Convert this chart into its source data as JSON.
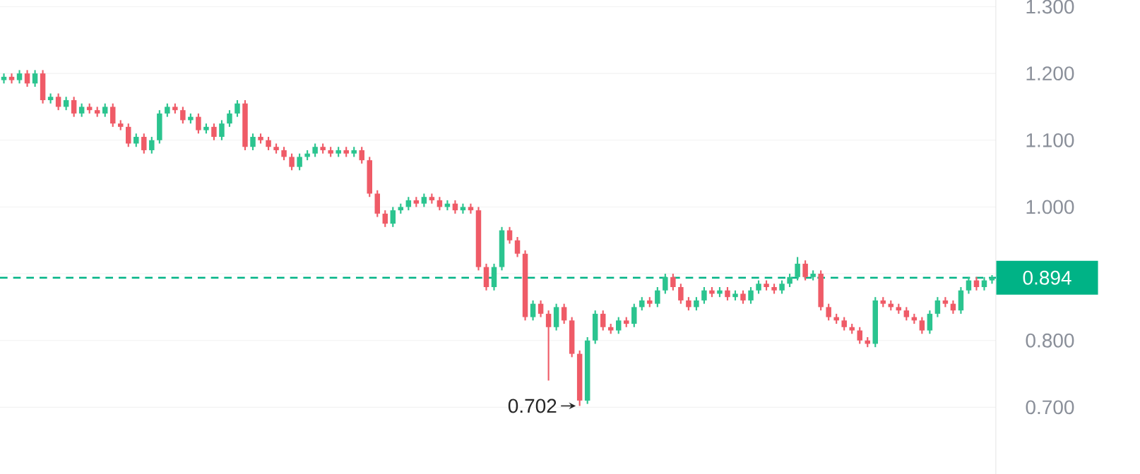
{
  "chart_data": {
    "type": "candlestick",
    "categories": [
      null,
      null,
      null,
      null,
      null,
      null,
      null,
      null,
      null,
      null,
      null,
      null,
      null,
      null,
      null,
      null,
      null,
      null,
      null,
      null,
      null,
      null,
      null,
      null,
      null,
      null,
      null,
      null,
      null,
      null,
      null,
      null,
      null,
      null,
      null,
      null,
      null,
      null,
      null,
      null,
      null,
      null,
      null,
      null,
      null,
      null,
      null,
      null,
      null,
      null,
      null,
      null,
      null,
      null,
      null,
      null,
      null,
      null,
      null,
      null,
      null,
      null,
      null,
      null,
      null,
      null,
      null,
      null,
      null,
      null,
      null,
      null,
      null,
      null,
      null,
      null,
      null,
      null,
      null,
      null,
      null,
      null,
      null,
      null,
      null,
      null,
      null,
      null,
      null,
      null,
      null,
      null,
      null,
      null,
      null,
      null,
      null,
      null,
      null,
      null,
      null,
      null,
      null,
      null,
      null,
      null,
      null,
      null,
      null,
      null,
      null,
      null,
      null,
      null,
      null,
      null,
      null,
      null,
      null,
      null,
      null,
      null,
      null,
      null,
      null,
      null,
      null,
      null
    ],
    "ohlc": [
      [
        1.19,
        1.2,
        1.185,
        1.195
      ],
      [
        1.195,
        1.2,
        1.185,
        1.19
      ],
      [
        1.19,
        1.205,
        1.185,
        1.2
      ],
      [
        1.2,
        1.205,
        1.18,
        1.185
      ],
      [
        1.185,
        1.205,
        1.18,
        1.2
      ],
      [
        1.2,
        1.205,
        1.155,
        1.16
      ],
      [
        1.16,
        1.17,
        1.155,
        1.165
      ],
      [
        1.165,
        1.17,
        1.145,
        1.15
      ],
      [
        1.15,
        1.165,
        1.145,
        1.16
      ],
      [
        1.16,
        1.165,
        1.135,
        1.14
      ],
      [
        1.14,
        1.155,
        1.135,
        1.15
      ],
      [
        1.15,
        1.155,
        1.14,
        1.145
      ],
      [
        1.145,
        1.15,
        1.135,
        1.14
      ],
      [
        1.14,
        1.155,
        1.135,
        1.15
      ],
      [
        1.15,
        1.155,
        1.12,
        1.125
      ],
      [
        1.125,
        1.13,
        1.115,
        1.12
      ],
      [
        1.12,
        1.125,
        1.09,
        1.095
      ],
      [
        1.095,
        1.11,
        1.09,
        1.105
      ],
      [
        1.105,
        1.11,
        1.08,
        1.085
      ],
      [
        1.085,
        1.105,
        1.08,
        1.1
      ],
      [
        1.1,
        1.145,
        1.095,
        1.14
      ],
      [
        1.14,
        1.155,
        1.135,
        1.15
      ],
      [
        1.15,
        1.155,
        1.14,
        1.145
      ],
      [
        1.145,
        1.15,
        1.125,
        1.13
      ],
      [
        1.13,
        1.14,
        1.125,
        1.135
      ],
      [
        1.135,
        1.14,
        1.11,
        1.115
      ],
      [
        1.115,
        1.125,
        1.11,
        1.12
      ],
      [
        1.12,
        1.125,
        1.1,
        1.105
      ],
      [
        1.105,
        1.13,
        1.1,
        1.125
      ],
      [
        1.125,
        1.145,
        1.12,
        1.14
      ],
      [
        1.14,
        1.16,
        1.135,
        1.155
      ],
      [
        1.155,
        1.16,
        1.085,
        1.09
      ],
      [
        1.09,
        1.11,
        1.085,
        1.105
      ],
      [
        1.105,
        1.11,
        1.095,
        1.1
      ],
      [
        1.1,
        1.105,
        1.085,
        1.09
      ],
      [
        1.09,
        1.095,
        1.08,
        1.085
      ],
      [
        1.085,
        1.09,
        1.07,
        1.075
      ],
      [
        1.075,
        1.08,
        1.055,
        1.06
      ],
      [
        1.06,
        1.08,
        1.055,
        1.075
      ],
      [
        1.075,
        1.085,
        1.07,
        1.08
      ],
      [
        1.08,
        1.095,
        1.075,
        1.09
      ],
      [
        1.09,
        1.095,
        1.08,
        1.085
      ],
      [
        1.085,
        1.09,
        1.075,
        1.08
      ],
      [
        1.08,
        1.09,
        1.075,
        1.085
      ],
      [
        1.085,
        1.09,
        1.075,
        1.08
      ],
      [
        1.08,
        1.09,
        1.075,
        1.085
      ],
      [
        1.085,
        1.09,
        1.065,
        1.07
      ],
      [
        1.07,
        1.075,
        1.015,
        1.02
      ],
      [
        1.02,
        1.025,
        0.985,
        0.99
      ],
      [
        0.99,
        0.995,
        0.97,
        0.975
      ],
      [
        0.975,
        1.0,
        0.97,
        0.995
      ],
      [
        0.995,
        1.005,
        0.99,
        1.0
      ],
      [
        1.0,
        1.015,
        0.995,
        1.01
      ],
      [
        1.01,
        1.015,
        1.0,
        1.005
      ],
      [
        1.005,
        1.02,
        1.0,
        1.015
      ],
      [
        1.015,
        1.02,
        1.005,
        1.01
      ],
      [
        1.01,
        1.015,
        0.995,
        1.0
      ],
      [
        1.0,
        1.01,
        0.995,
        1.005
      ],
      [
        1.005,
        1.01,
        0.99,
        0.995
      ],
      [
        0.995,
        1.005,
        0.99,
        1.0
      ],
      [
        1.0,
        1.005,
        0.99,
        0.995
      ],
      [
        0.995,
        1.0,
        0.905,
        0.91
      ],
      [
        0.91,
        0.915,
        0.875,
        0.88
      ],
      [
        0.88,
        0.915,
        0.875,
        0.91
      ],
      [
        0.91,
        0.97,
        0.905,
        0.965
      ],
      [
        0.965,
        0.97,
        0.945,
        0.95
      ],
      [
        0.95,
        0.955,
        0.925,
        0.93
      ],
      [
        0.93,
        0.935,
        0.83,
        0.835
      ],
      [
        0.835,
        0.86,
        0.83,
        0.855
      ],
      [
        0.855,
        0.86,
        0.835,
        0.84
      ],
      [
        0.84,
        0.845,
        0.74,
        0.82
      ],
      [
        0.82,
        0.855,
        0.815,
        0.85
      ],
      [
        0.85,
        0.855,
        0.825,
        0.83
      ],
      [
        0.83,
        0.835,
        0.775,
        0.78
      ],
      [
        0.78,
        0.785,
        0.702,
        0.71
      ],
      [
        0.71,
        0.805,
        0.705,
        0.8
      ],
      [
        0.8,
        0.845,
        0.795,
        0.84
      ],
      [
        0.84,
        0.845,
        0.815,
        0.82
      ],
      [
        0.82,
        0.825,
        0.81,
        0.815
      ],
      [
        0.815,
        0.835,
        0.81,
        0.83
      ],
      [
        0.83,
        0.835,
        0.82,
        0.825
      ],
      [
        0.825,
        0.855,
        0.82,
        0.85
      ],
      [
        0.85,
        0.865,
        0.845,
        0.86
      ],
      [
        0.86,
        0.865,
        0.85,
        0.855
      ],
      [
        0.855,
        0.88,
        0.85,
        0.875
      ],
      [
        0.875,
        0.9,
        0.87,
        0.895
      ],
      [
        0.895,
        0.9,
        0.875,
        0.88
      ],
      [
        0.88,
        0.885,
        0.855,
        0.86
      ],
      [
        0.86,
        0.865,
        0.845,
        0.85
      ],
      [
        0.85,
        0.865,
        0.845,
        0.86
      ],
      [
        0.86,
        0.88,
        0.855,
        0.875
      ],
      [
        0.875,
        0.88,
        0.865,
        0.87
      ],
      [
        0.87,
        0.88,
        0.865,
        0.875
      ],
      [
        0.875,
        0.88,
        0.86,
        0.865
      ],
      [
        0.865,
        0.875,
        0.86,
        0.87
      ],
      [
        0.87,
        0.875,
        0.855,
        0.86
      ],
      [
        0.86,
        0.88,
        0.855,
        0.875
      ],
      [
        0.875,
        0.89,
        0.87,
        0.885
      ],
      [
        0.885,
        0.89,
        0.875,
        0.88
      ],
      [
        0.88,
        0.885,
        0.87,
        0.875
      ],
      [
        0.875,
        0.89,
        0.87,
        0.885
      ],
      [
        0.885,
        0.9,
        0.88,
        0.895
      ],
      [
        0.895,
        0.925,
        0.89,
        0.915
      ],
      [
        0.915,
        0.92,
        0.89,
        0.895
      ],
      [
        0.895,
        0.905,
        0.89,
        0.9
      ],
      [
        0.9,
        0.905,
        0.845,
        0.85
      ],
      [
        0.85,
        0.855,
        0.83,
        0.835
      ],
      [
        0.835,
        0.84,
        0.825,
        0.83
      ],
      [
        0.83,
        0.835,
        0.815,
        0.82
      ],
      [
        0.82,
        0.825,
        0.81,
        0.815
      ],
      [
        0.815,
        0.82,
        0.795,
        0.8
      ],
      [
        0.8,
        0.805,
        0.79,
        0.795
      ],
      [
        0.795,
        0.865,
        0.79,
        0.86
      ],
      [
        0.86,
        0.865,
        0.85,
        0.855
      ],
      [
        0.855,
        0.86,
        0.845,
        0.85
      ],
      [
        0.85,
        0.855,
        0.84,
        0.845
      ],
      [
        0.845,
        0.85,
        0.83,
        0.835
      ],
      [
        0.835,
        0.84,
        0.825,
        0.83
      ],
      [
        0.83,
        0.835,
        0.81,
        0.815
      ],
      [
        0.815,
        0.845,
        0.81,
        0.84
      ],
      [
        0.84,
        0.865,
        0.835,
        0.86
      ],
      [
        0.86,
        0.865,
        0.85,
        0.855
      ],
      [
        0.855,
        0.86,
        0.84,
        0.845
      ],
      [
        0.845,
        0.88,
        0.84,
        0.875
      ],
      [
        0.875,
        0.895,
        0.87,
        0.89
      ],
      [
        0.89,
        0.895,
        0.875,
        0.88
      ],
      [
        0.88,
        0.895,
        0.875,
        0.89
      ],
      [
        0.89,
        0.898,
        0.885,
        0.894
      ]
    ],
    "ylim": [
      0.6,
      1.31
    ],
    "yticks": [
      {
        "value": 0.7,
        "label": "0.700"
      },
      {
        "value": 0.8,
        "label": "0.800"
      },
      {
        "value": 0.9,
        "label": null
      },
      {
        "value": 1.0,
        "label": "1.000"
      },
      {
        "value": 1.1,
        "label": "1.100"
      },
      {
        "value": 1.2,
        "label": "1.200"
      },
      {
        "value": 1.3,
        "label": "1.300"
      }
    ],
    "grid": "y",
    "ref_lines": [
      {
        "axis": "y",
        "value": 0.894,
        "label": "0.894",
        "color": "#00b386",
        "line_style": "dashed"
      }
    ],
    "annotations": [
      "0.702"
    ]
  }
}
